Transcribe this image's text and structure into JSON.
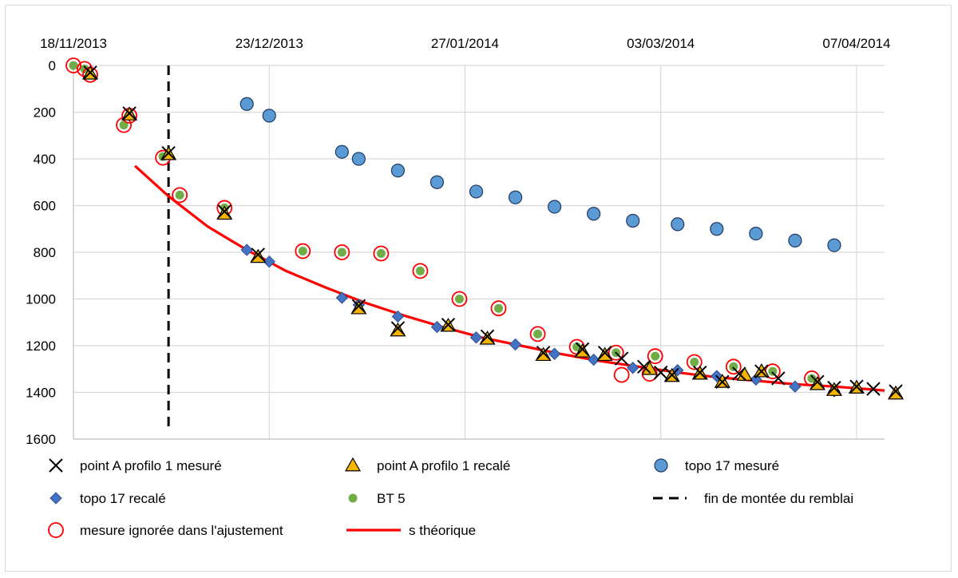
{
  "chart_data": {
    "type": "scatter",
    "x_axis": {
      "kind": "date",
      "min": "2013-11-18",
      "max": "2014-04-12",
      "ticks": [
        "2013-11-18",
        "2013-12-23",
        "2014-01-27",
        "2014-03-03",
        "2014-04-07"
      ],
      "tick_labels": [
        "18/11/2013",
        "23/12/2013",
        "27/01/2014",
        "03/03/2014",
        "07/04/2014"
      ],
      "position": "top"
    },
    "y_axis": {
      "min": 0,
      "max": 1600,
      "reversed": true,
      "ticks": [
        0,
        200,
        400,
        600,
        800,
        1000,
        1200,
        1400,
        1600
      ],
      "tick_labels": [
        "0",
        "200",
        "400",
        "600",
        "800",
        "1000",
        "1200",
        "1400",
        "1600"
      ]
    },
    "grid": true,
    "legend_position": "bottom",
    "vline": {
      "name": "fin de montée du remblai",
      "x": "2013-12-05",
      "style": "dashed",
      "color": "#000000"
    },
    "series": [
      {
        "name": "point A profilo 1 mesuré",
        "marker": "x",
        "color": "#000000",
        "points": [
          {
            "x": "2013-11-21",
            "y": 30
          },
          {
            "x": "2013-11-28",
            "y": 205
          },
          {
            "x": "2013-12-05",
            "y": 375
          },
          {
            "x": "2013-12-15",
            "y": 625
          },
          {
            "x": "2013-12-21",
            "y": 810
          },
          {
            "x": "2014-01-08",
            "y": 1030
          },
          {
            "x": "2014-01-15",
            "y": 1125
          },
          {
            "x": "2014-01-24",
            "y": 1110
          },
          {
            "x": "2014-01-31",
            "y": 1160
          },
          {
            "x": "2014-02-10",
            "y": 1230
          },
          {
            "x": "2014-02-17",
            "y": 1215
          },
          {
            "x": "2014-02-21",
            "y": 1230
          },
          {
            "x": "2014-02-24",
            "y": 1255
          },
          {
            "x": "2014-02-28",
            "y": 1290
          },
          {
            "x": "2014-03-03",
            "y": 1315
          },
          {
            "x": "2014-03-05",
            "y": 1325
          },
          {
            "x": "2014-03-10",
            "y": 1315
          },
          {
            "x": "2014-03-14",
            "y": 1355
          },
          {
            "x": "2014-03-17",
            "y": 1320
          },
          {
            "x": "2014-03-21",
            "y": 1310
          },
          {
            "x": "2014-03-24",
            "y": 1340
          },
          {
            "x": "2014-03-31",
            "y": 1355
          },
          {
            "x": "2014-04-03",
            "y": 1380
          },
          {
            "x": "2014-04-07",
            "y": 1375
          },
          {
            "x": "2014-04-10",
            "y": 1385
          },
          {
            "x": "2014-04-14",
            "y": 1395
          }
        ]
      },
      {
        "name": "point A profilo 1 recalé",
        "marker": "triangle",
        "color": "#f5b400",
        "points": [
          {
            "x": "2013-11-21",
            "y": 35
          },
          {
            "x": "2013-11-28",
            "y": 210
          },
          {
            "x": "2013-12-05",
            "y": 380
          },
          {
            "x": "2013-12-15",
            "y": 635
          },
          {
            "x": "2013-12-21",
            "y": 820
          },
          {
            "x": "2014-01-08",
            "y": 1040
          },
          {
            "x": "2014-01-15",
            "y": 1135
          },
          {
            "x": "2014-01-24",
            "y": 1115
          },
          {
            "x": "2014-01-31",
            "y": 1170
          },
          {
            "x": "2014-02-10",
            "y": 1240
          },
          {
            "x": "2014-02-17",
            "y": 1225
          },
          {
            "x": "2014-02-21",
            "y": 1240
          },
          {
            "x": "2014-03-01",
            "y": 1300
          },
          {
            "x": "2014-03-05",
            "y": 1330
          },
          {
            "x": "2014-03-10",
            "y": 1320
          },
          {
            "x": "2014-03-14",
            "y": 1355
          },
          {
            "x": "2014-03-18",
            "y": 1325
          },
          {
            "x": "2014-03-21",
            "y": 1310
          },
          {
            "x": "2014-03-31",
            "y": 1365
          },
          {
            "x": "2014-04-03",
            "y": 1390
          },
          {
            "x": "2014-04-07",
            "y": 1380
          },
          {
            "x": "2014-04-14",
            "y": 1405
          }
        ]
      },
      {
        "name": "topo 17 mesuré",
        "marker": "circle",
        "color": "#5b9bd5",
        "points": [
          {
            "x": "2013-12-19",
            "y": 165
          },
          {
            "x": "2013-12-23",
            "y": 215
          },
          {
            "x": "2014-01-05",
            "y": 370
          },
          {
            "x": "2014-01-08",
            "y": 400
          },
          {
            "x": "2014-01-15",
            "y": 450
          },
          {
            "x": "2014-01-22",
            "y": 500
          },
          {
            "x": "2014-01-29",
            "y": 540
          },
          {
            "x": "2014-02-05",
            "y": 565
          },
          {
            "x": "2014-02-12",
            "y": 605
          },
          {
            "x": "2014-02-19",
            "y": 635
          },
          {
            "x": "2014-02-26",
            "y": 665
          },
          {
            "x": "2014-03-06",
            "y": 680
          },
          {
            "x": "2014-03-13",
            "y": 700
          },
          {
            "x": "2014-03-20",
            "y": 720
          },
          {
            "x": "2014-03-27",
            "y": 750
          },
          {
            "x": "2014-04-03",
            "y": 770
          }
        ]
      },
      {
        "name": "topo 17 recalé",
        "marker": "diamond",
        "color": "#4472c4",
        "points": [
          {
            "x": "2013-12-19",
            "y": 790
          },
          {
            "x": "2013-12-23",
            "y": 840
          },
          {
            "x": "2014-01-05",
            "y": 995
          },
          {
            "x": "2014-01-08",
            "y": 1025
          },
          {
            "x": "2014-01-15",
            "y": 1075
          },
          {
            "x": "2014-01-22",
            "y": 1120
          },
          {
            "x": "2014-01-29",
            "y": 1165
          },
          {
            "x": "2014-02-05",
            "y": 1195
          },
          {
            "x": "2014-02-12",
            "y": 1235
          },
          {
            "x": "2014-02-19",
            "y": 1260
          },
          {
            "x": "2014-02-26",
            "y": 1295
          },
          {
            "x": "2014-03-06",
            "y": 1305
          },
          {
            "x": "2014-03-13",
            "y": 1330
          },
          {
            "x": "2014-03-20",
            "y": 1345
          },
          {
            "x": "2014-03-27",
            "y": 1375
          },
          {
            "x": "2014-04-03",
            "y": 1395
          }
        ]
      },
      {
        "name": "BT 5",
        "marker": "circle",
        "color": "#70ad47",
        "points": [
          {
            "x": "2013-11-18",
            "y": 0
          },
          {
            "x": "2013-11-20",
            "y": 15
          },
          {
            "x": "2013-11-21",
            "y": 40
          },
          {
            "x": "2013-11-27",
            "y": 255
          },
          {
            "x": "2013-12-04",
            "y": 390
          },
          {
            "x": "2013-12-07",
            "y": 555
          },
          {
            "x": "2013-12-15",
            "y": 610
          },
          {
            "x": "2013-12-29",
            "y": 795
          },
          {
            "x": "2014-01-05",
            "y": 800
          },
          {
            "x": "2014-01-12",
            "y": 805
          },
          {
            "x": "2014-01-19",
            "y": 880
          },
          {
            "x": "2014-01-26",
            "y": 1000
          },
          {
            "x": "2014-02-02",
            "y": 1040
          },
          {
            "x": "2014-02-09",
            "y": 1150
          },
          {
            "x": "2014-02-16",
            "y": 1205
          },
          {
            "x": "2014-02-23",
            "y": 1230
          },
          {
            "x": "2014-03-02",
            "y": 1245
          },
          {
            "x": "2014-03-09",
            "y": 1270
          },
          {
            "x": "2014-03-16",
            "y": 1290
          },
          {
            "x": "2014-03-23",
            "y": 1310
          },
          {
            "x": "2014-03-30",
            "y": 1340
          }
        ]
      },
      {
        "name": "mesure ignorée dans l'ajustement",
        "marker": "open-circle",
        "color": "#ff0000",
        "points": [
          {
            "x": "2013-11-18",
            "y": 0
          },
          {
            "x": "2013-11-20",
            "y": 15
          },
          {
            "x": "2013-11-21",
            "y": 40
          },
          {
            "x": "2013-11-27",
            "y": 255
          },
          {
            "x": "2013-11-28",
            "y": 215
          },
          {
            "x": "2013-12-04",
            "y": 395
          },
          {
            "x": "2013-12-07",
            "y": 555
          },
          {
            "x": "2013-12-15",
            "y": 610
          },
          {
            "x": "2013-12-29",
            "y": 795
          },
          {
            "x": "2014-01-05",
            "y": 800
          },
          {
            "x": "2014-01-12",
            "y": 805
          },
          {
            "x": "2014-01-19",
            "y": 880
          },
          {
            "x": "2014-01-26",
            "y": 1000
          },
          {
            "x": "2014-02-02",
            "y": 1040
          },
          {
            "x": "2014-02-09",
            "y": 1150
          },
          {
            "x": "2014-02-16",
            "y": 1205
          },
          {
            "x": "2014-02-23",
            "y": 1230
          },
          {
            "x": "2014-02-24",
            "y": 1325
          },
          {
            "x": "2014-03-02",
            "y": 1245
          },
          {
            "x": "2014-03-01",
            "y": 1320
          },
          {
            "x": "2014-03-09",
            "y": 1270
          },
          {
            "x": "2014-03-16",
            "y": 1290
          },
          {
            "x": "2014-03-23",
            "y": 1310
          },
          {
            "x": "2014-03-30",
            "y": 1340
          }
        ]
      },
      {
        "name": "s théorique",
        "marker": "line",
        "color": "#ff0000",
        "points": [
          {
            "x": "2013-11-29",
            "y": 430
          },
          {
            "x": "2013-12-05",
            "y": 560
          },
          {
            "x": "2013-12-12",
            "y": 690
          },
          {
            "x": "2013-12-19",
            "y": 790
          },
          {
            "x": "2013-12-26",
            "y": 880
          },
          {
            "x": "2014-01-02",
            "y": 950
          },
          {
            "x": "2014-01-09",
            "y": 1015
          },
          {
            "x": "2014-01-16",
            "y": 1070
          },
          {
            "x": "2014-01-23",
            "y": 1120
          },
          {
            "x": "2014-01-30",
            "y": 1165
          },
          {
            "x": "2014-02-06",
            "y": 1200
          },
          {
            "x": "2014-02-13",
            "y": 1235
          },
          {
            "x": "2014-02-20",
            "y": 1265
          },
          {
            "x": "2014-02-27",
            "y": 1290
          },
          {
            "x": "2014-03-06",
            "y": 1315
          },
          {
            "x": "2014-03-13",
            "y": 1335
          },
          {
            "x": "2014-03-20",
            "y": 1350
          },
          {
            "x": "2014-03-27",
            "y": 1365
          },
          {
            "x": "2014-04-03",
            "y": 1375
          },
          {
            "x": "2014-04-10",
            "y": 1388
          },
          {
            "x": "2014-04-12",
            "y": 1392
          }
        ]
      }
    ]
  }
}
